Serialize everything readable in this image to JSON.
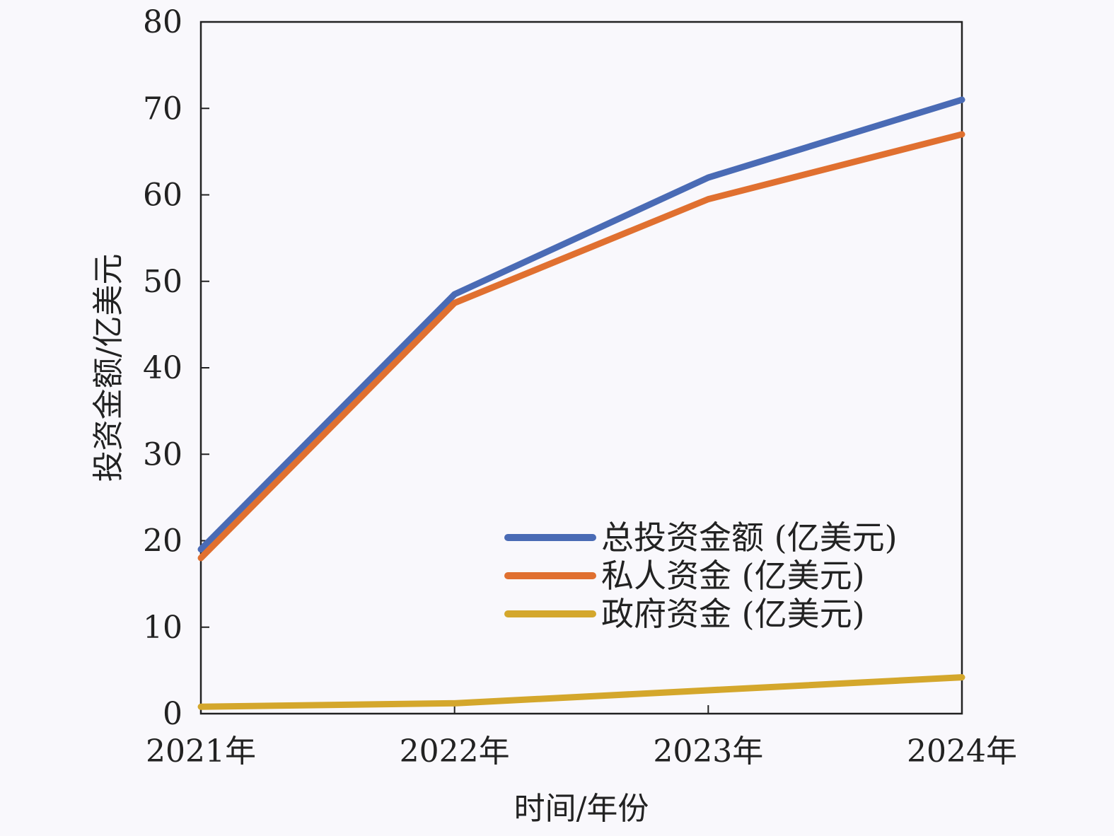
{
  "chart_data": {
    "type": "line",
    "x": [
      "2021年",
      "2022年",
      "2023年",
      "2024年"
    ],
    "series": [
      {
        "name": "总投资金额 (亿美元)",
        "color": "#4a6bb5",
        "values": [
          19,
          48.5,
          62,
          71
        ]
      },
      {
        "name": "私人资金 (亿美元)",
        "color": "#e07030",
        "values": [
          18,
          47.5,
          59.5,
          67
        ]
      },
      {
        "name": "政府资金 (亿美元)",
        "color": "#d4a72c",
        "values": [
          0.8,
          1.2,
          2.7,
          4.2
        ]
      }
    ],
    "xlabel": "时间/年份",
    "ylabel": "投资金额/亿美元",
    "ylim": [
      0,
      80
    ],
    "yticks": [
      "0",
      "10",
      "20",
      "30",
      "40",
      "50",
      "60",
      "70",
      "80"
    ],
    "grid": false,
    "legend_position": "lower-right"
  }
}
